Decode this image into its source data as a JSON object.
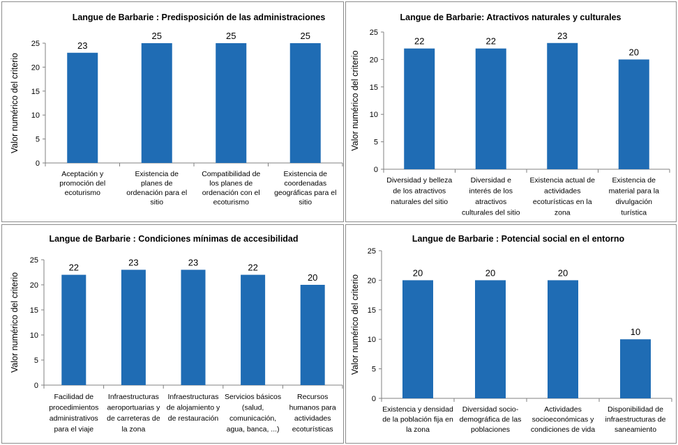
{
  "chart_data": [
    {
      "type": "bar",
      "title": "Langue de Barbarie : Predisposición de las administraciones",
      "ylabel": "Valor numérico del criterio",
      "xlabel": "",
      "ylim": [
        0,
        25
      ],
      "yticks": [
        0,
        5,
        10,
        15,
        20,
        25
      ],
      "grid": false,
      "color": "#1f6cb4",
      "categories": [
        [
          "Aceptación y",
          "promoción del",
          "ecoturismo"
        ],
        [
          "Existencia de",
          "planes de",
          "ordenación para el",
          "sitio"
        ],
        [
          "Compatibilidad de",
          "los planes de",
          "ordenación con el",
          "ecoturismo"
        ],
        [
          "Existencia de",
          "coordenadas",
          "geográficas para el",
          "sitio"
        ]
      ],
      "values": [
        23,
        25,
        25,
        25
      ]
    },
    {
      "type": "bar",
      "title": "Langue de Barbarie: Atractivos naturales y culturales",
      "ylabel": "Valor numérico del criterio",
      "xlabel": "",
      "ylim": [
        0,
        25
      ],
      "yticks": [
        0,
        5,
        10,
        15,
        20,
        25
      ],
      "grid": false,
      "color": "#1f6cb4",
      "categories": [
        [
          "Diversidad y belleza",
          "de los atractivos",
          "naturales del sitio"
        ],
        [
          "Diversidad e",
          "interés de los",
          "atractivos",
          "culturales del sitio"
        ],
        [
          "Existencia actual de",
          "actividades",
          "ecoturísticas en la",
          "zona"
        ],
        [
          "Existencia de",
          "material para la",
          "divulgación",
          "turística"
        ]
      ],
      "values": [
        22,
        22,
        23,
        20
      ]
    },
    {
      "type": "bar",
      "title": "Langue de Barbarie : Condiciones mínimas de accesibilidad",
      "ylabel": "Valor numérico del criterio",
      "xlabel": "",
      "ylim": [
        0,
        25
      ],
      "yticks": [
        0,
        5,
        10,
        15,
        20,
        25
      ],
      "grid": false,
      "color": "#1f6cb4",
      "categories": [
        [
          "Facilidad de",
          "procedimientos",
          "administrativos",
          "para el viaje"
        ],
        [
          "Infraestructuras",
          "aeroportuarias y",
          "de carreteras de",
          "la zona"
        ],
        [
          "Infraestructuras",
          "de alojamiento y",
          "de restauración"
        ],
        [
          "Servicios básicos",
          "(salud,",
          "comunicación,",
          "agua, banca, ...)"
        ],
        [
          "Recursos",
          "humanos para",
          "actividades",
          "ecoturísticas"
        ]
      ],
      "values": [
        22,
        23,
        23,
        22,
        20
      ]
    },
    {
      "type": "bar",
      "title": "Langue de Barbarie : Potencial social en el entorno",
      "ylabel": "Valor numérico del criterio",
      "xlabel": "",
      "ylim": [
        0,
        25
      ],
      "yticks": [
        0,
        5,
        10,
        15,
        20,
        25
      ],
      "grid": false,
      "color": "#1f6cb4",
      "categories": [
        [
          "Existencia y densidad",
          "de la población fija en",
          "la zona"
        ],
        [
          "Diversidad socio-",
          "demográfica de las",
          "poblaciones"
        ],
        [
          "Actividades",
          "socioeconómicas y",
          "condiciones de vida"
        ],
        [
          "Disponibilidad de",
          "infraestructuras de",
          "saneamiento"
        ]
      ],
      "values": [
        20,
        20,
        20,
        10
      ]
    }
  ]
}
